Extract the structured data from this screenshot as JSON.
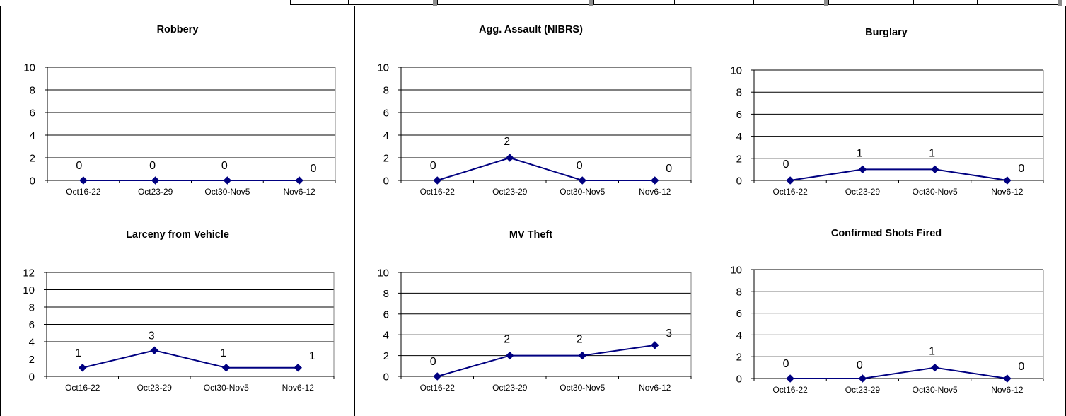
{
  "chart_data": [
    {
      "type": "line",
      "title": "Robbery",
      "categories": [
        "Oct16-22",
        "Oct23-29",
        "Oct30-Nov5",
        "Nov6-12"
      ],
      "values": [
        0,
        0,
        0,
        0
      ],
      "ylim": [
        0,
        10
      ],
      "yticks": [
        0,
        2,
        4,
        6,
        8,
        10
      ],
      "ytick_labels": [
        "0",
        "2",
        "4",
        "6",
        "8",
        "10"
      ],
      "value_labels": [
        "0",
        "0",
        "0",
        "0"
      ],
      "grid": true,
      "line_color": "#000080"
    },
    {
      "type": "line",
      "title": "Agg. Assault (NIBRS)",
      "categories": [
        "Oct16-22",
        "Oct23-29",
        "Oct30-Nov5",
        "Nov6-12"
      ],
      "values": [
        0,
        2,
        0,
        0
      ],
      "ylim": [
        0,
        10
      ],
      "yticks": [
        0,
        2,
        4,
        6,
        8,
        10
      ],
      "ytick_labels": [
        "0",
        "2",
        "4",
        "6",
        "8",
        "10"
      ],
      "value_labels": [
        "0",
        "2",
        "0",
        "0"
      ],
      "grid": true,
      "line_color": "#000080"
    },
    {
      "type": "line",
      "title": "Burglary",
      "categories": [
        "Oct16-22",
        "Oct23-29",
        "Oct30-Nov5",
        "Nov6-12"
      ],
      "values": [
        0,
        1,
        1,
        0
      ],
      "ylim": [
        0,
        10
      ],
      "yticks": [
        0,
        2,
        4,
        6,
        8,
        10
      ],
      "ytick_labels": [
        "0",
        "2",
        "4",
        "6",
        "8",
        "10"
      ],
      "value_labels": [
        "0",
        "1",
        "1",
        "0"
      ],
      "grid": true,
      "line_color": "#000080"
    },
    {
      "type": "line",
      "title": "Larceny from Vehicle",
      "categories": [
        "Oct16-22",
        "Oct23-29",
        "Oct30-Nov5",
        "Nov6-12"
      ],
      "values": [
        1,
        3,
        1,
        1
      ],
      "ylim": [
        0,
        12
      ],
      "yticks": [
        0,
        2,
        4,
        6,
        8,
        10,
        12
      ],
      "ytick_labels": [
        "0",
        "2",
        "4",
        "6",
        "8",
        "10",
        "12"
      ],
      "value_labels": [
        "1",
        "3",
        "1",
        "1"
      ],
      "grid": true,
      "line_color": "#000080"
    },
    {
      "type": "line",
      "title": "MV Theft",
      "categories": [
        "Oct16-22",
        "Oct23-29",
        "Oct30-Nov5",
        "Nov6-12"
      ],
      "values": [
        0,
        2,
        2,
        3
      ],
      "ylim": [
        0,
        10
      ],
      "yticks": [
        0,
        2,
        4,
        6,
        8,
        10
      ],
      "ytick_labels": [
        "0",
        "2",
        "4",
        "6",
        "8",
        "10"
      ],
      "value_labels": [
        "0",
        "2",
        "2",
        "3"
      ],
      "grid": true,
      "line_color": "#000080"
    },
    {
      "type": "line",
      "title": "Confirmed Shots Fired",
      "categories": [
        "Oct16-22",
        "Oct23-29",
        "Oct30-Nov5",
        "Nov6-12"
      ],
      "values": [
        0,
        0,
        1,
        0
      ],
      "ylim": [
        0,
        10
      ],
      "yticks": [
        0,
        2,
        4,
        6,
        8,
        10
      ],
      "ytick_labels": [
        "0",
        "2",
        "4",
        "6",
        "8",
        "10"
      ],
      "value_labels": [
        "0",
        "0",
        "1",
        "0"
      ],
      "grid": true,
      "line_color": "#000080"
    }
  ]
}
